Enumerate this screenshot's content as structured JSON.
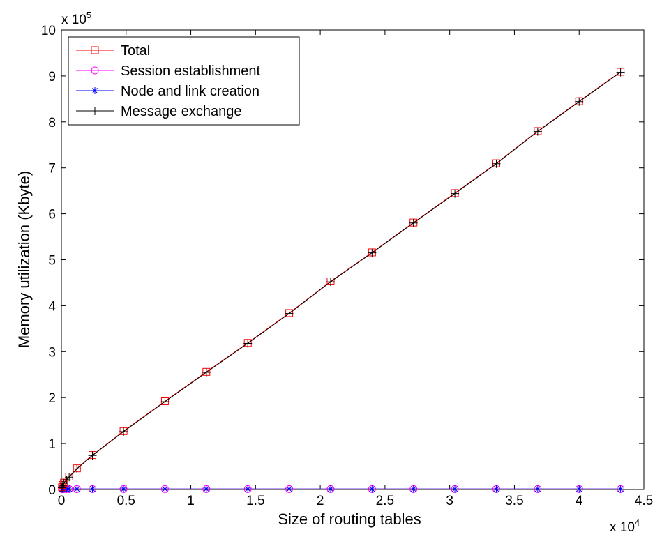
{
  "chart_data": {
    "type": "line",
    "title": "",
    "xlabel": "Size of routing tables",
    "ylabel": "Memory utilization (Kbyte)",
    "x_multiplier_base": "x 10",
    "x_multiplier_exp": "4",
    "y_multiplier_base": "x 10",
    "y_multiplier_exp": "5",
    "xlim": [
      0,
      4.5
    ],
    "ylim": [
      0,
      10
    ],
    "x_ticks": [
      0,
      0.5,
      1,
      1.5,
      2,
      2.5,
      3,
      3.5,
      4,
      4.5
    ],
    "x_tick_labels": [
      "0",
      "0.5",
      "1",
      "1.5",
      "2",
      "2.5",
      "3",
      "3.5",
      "4",
      "4.5"
    ],
    "y_ticks": [
      0,
      1,
      2,
      3,
      4,
      5,
      6,
      7,
      8,
      9,
      10
    ],
    "y_tick_labels": [
      "0",
      "1",
      "2",
      "3",
      "4",
      "5",
      "6",
      "7",
      "8",
      "9",
      "10"
    ],
    "grid": false,
    "legend_position": "top-left",
    "x": [
      0.005,
      0.01,
      0.02,
      0.04,
      0.06,
      0.12,
      0.24,
      0.48,
      0.8,
      1.12,
      1.44,
      1.76,
      2.08,
      2.4,
      2.72,
      3.04,
      3.36,
      3.68,
      4.0,
      4.32
    ],
    "series": [
      {
        "name": "Total",
        "color": "#ff0000",
        "marker": "square",
        "values": [
          0.05,
          0.1,
          0.15,
          0.22,
          0.28,
          0.46,
          0.75,
          1.27,
          1.92,
          2.56,
          3.19,
          3.84,
          4.53,
          5.16,
          5.81,
          6.45,
          7.1,
          7.8,
          8.45,
          9.09
        ]
      },
      {
        "name": "Session establishment",
        "color": "#ff00ff",
        "marker": "circle",
        "values": [
          0.01,
          0.01,
          0.01,
          0.01,
          0.01,
          0.01,
          0.01,
          0.01,
          0.01,
          0.01,
          0.01,
          0.01,
          0.01,
          0.01,
          0.01,
          0.01,
          0.01,
          0.01,
          0.01,
          0.01
        ]
      },
      {
        "name": "Node and link creation",
        "color": "#0000ff",
        "marker": "star",
        "values": [
          0.01,
          0.01,
          0.01,
          0.01,
          0.01,
          0.01,
          0.01,
          0.01,
          0.01,
          0.01,
          0.01,
          0.01,
          0.01,
          0.01,
          0.01,
          0.01,
          0.01,
          0.01,
          0.01,
          0.01
        ]
      },
      {
        "name": "Message exchange",
        "color": "#000000",
        "marker": "plus",
        "values": [
          0.04,
          0.09,
          0.14,
          0.21,
          0.27,
          0.45,
          0.74,
          1.26,
          1.91,
          2.55,
          3.18,
          3.83,
          4.52,
          5.15,
          5.8,
          6.44,
          7.09,
          7.79,
          8.44,
          9.08
        ]
      }
    ]
  }
}
